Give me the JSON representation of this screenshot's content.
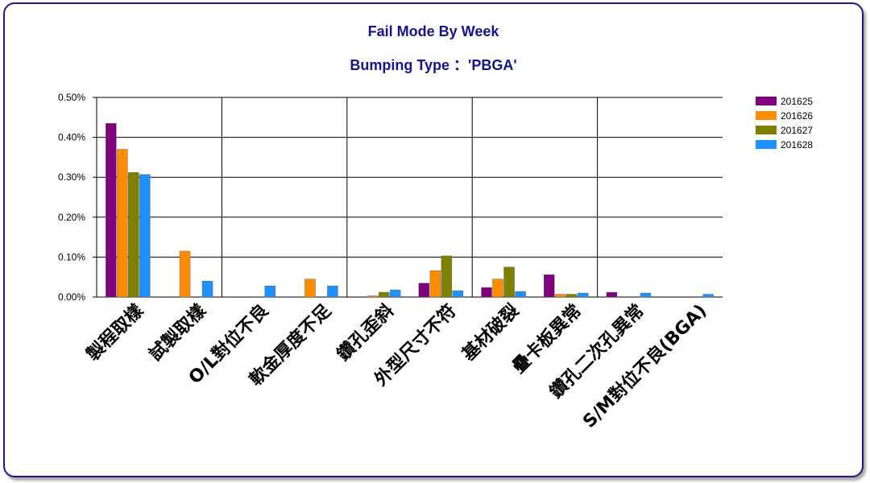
{
  "chart_data": {
    "type": "bar",
    "title": "Fail Mode By Week",
    "subtitle": "Bumping  Type  ：'PBGA'",
    "xlabel": "",
    "ylabel": "",
    "ylim": [
      0,
      0.5
    ],
    "y_ticks": [
      "0.00%",
      "0.10%",
      "0.20%",
      "0.30%",
      "0.40%",
      "0.50%"
    ],
    "grid": true,
    "legend_position": "top-right",
    "categories": [
      "製程取樣",
      "試製取樣",
      "O/L對位不良",
      "軟金厚度不足",
      "鑽孔歪斜",
      "外型尺寸不符",
      "基材破裂",
      "疊卡板異常",
      "鑽孔二次孔異常",
      "S/M對位不良(BGA)"
    ],
    "series": [
      {
        "name": "201625",
        "color": "#800080",
        "values": [
          0.435,
          0,
          0,
          0,
          0,
          0.035,
          0.024,
          0.056,
          0.012,
          0
        ]
      },
      {
        "name": "201626",
        "color": "#ff8c00",
        "values": [
          0.37,
          0.115,
          0,
          0.045,
          0.003,
          0.066,
          0.045,
          0.007,
          0,
          0
        ]
      },
      {
        "name": "201627",
        "color": "#808000",
        "values": [
          0.312,
          0,
          0,
          0,
          0.012,
          0.103,
          0.075,
          0.007,
          0,
          0
        ]
      },
      {
        "name": "201628",
        "color": "#1e90ff",
        "values": [
          0.307,
          0.04,
          0.028,
          0.028,
          0.018,
          0.016,
          0.014,
          0.01,
          0.01,
          0.007
        ]
      }
    ]
  }
}
